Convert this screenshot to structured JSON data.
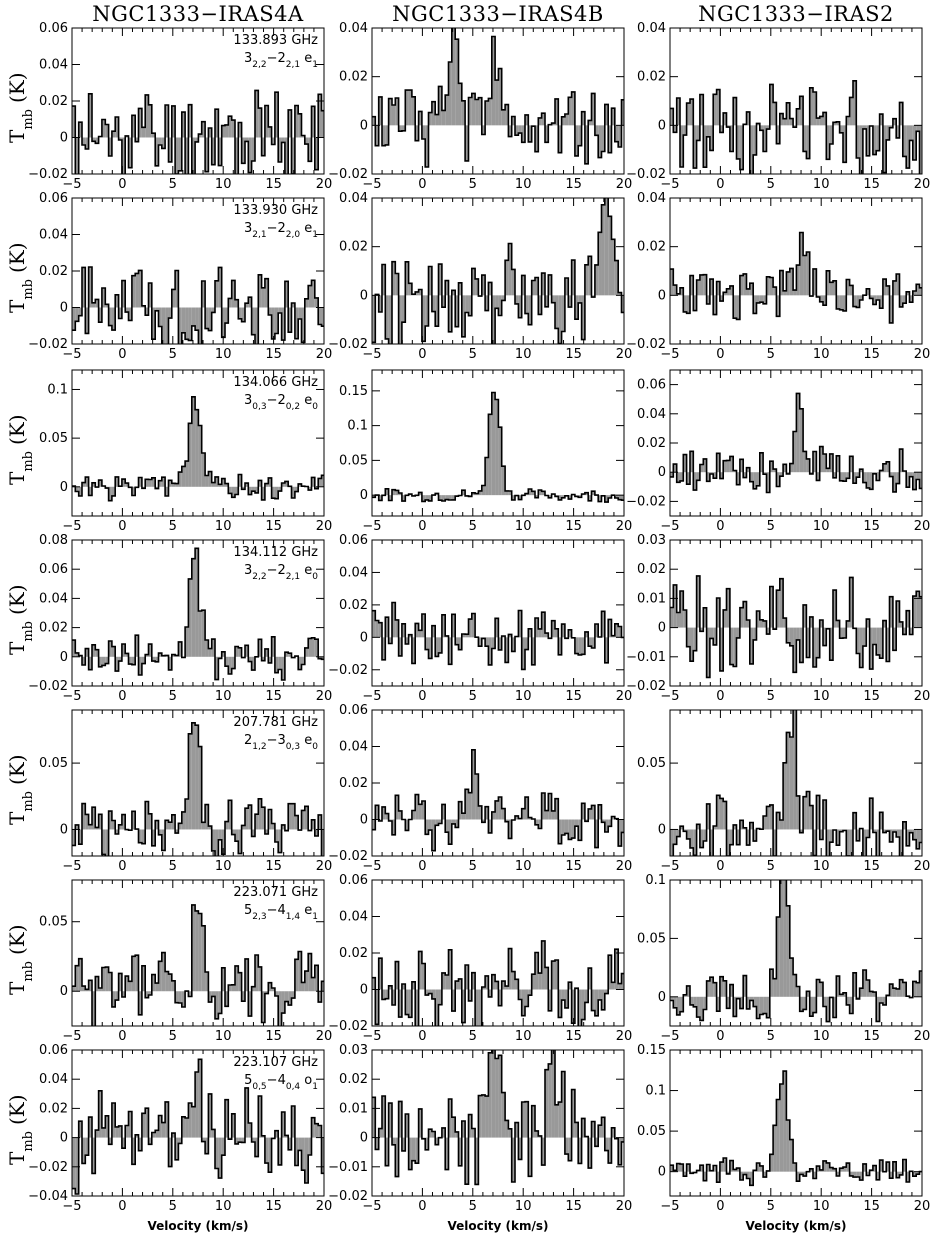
{
  "columns": [
    "NGC1333−IRAS4A",
    "NGC1333−IRAS4B",
    "NGC1333−IRAS2"
  ],
  "ylabel_main": "T",
  "ylabel_sub": "mb",
  "ylabel_unit": "(K)",
  "xlabel": "Velocity (km/s)",
  "colors": {
    "fill": "#999999",
    "line": "#000000"
  },
  "transitions": [
    {
      "freq": "133.893 GHz",
      "q": "3",
      "qa": "2,2",
      "q2": "2",
      "qb": "2,1",
      "sym": "e",
      "symsub": "1"
    },
    {
      "freq": "133.930 GHz",
      "q": "3",
      "qa": "2,1",
      "q2": "2",
      "qb": "2,0",
      "sym": "e",
      "symsub": "1"
    },
    {
      "freq": "134.066 GHz",
      "q": "3",
      "qa": "0,3",
      "q2": "2",
      "qb": "0,2",
      "sym": "e",
      "symsub": "0"
    },
    {
      "freq": "134.112 GHz",
      "q": "3",
      "qa": "2,2",
      "q2": "2",
      "qb": "2,1",
      "sym": "e",
      "symsub": "0"
    },
    {
      "freq": "207.781 GHz",
      "q": "2",
      "qa": "1,2",
      "q2": "3",
      "qb": "0,3",
      "sym": "e",
      "symsub": "0"
    },
    {
      "freq": "223.071 GHz",
      "q": "5",
      "qa": "2,3",
      "q2": "4",
      "qb": "1,4",
      "sym": "e",
      "symsub": "1"
    },
    {
      "freq": "223.107 GHz",
      "q": "5",
      "qa": "0,5",
      "q2": "4",
      "qb": "0,4",
      "sym": "o",
      "symsub": "1"
    }
  ],
  "chart_data": {
    "type": "line",
    "style": "histogram",
    "xlim": [
      -5,
      20
    ],
    "xticks": [
      "−5",
      "0",
      "5",
      "10",
      "15",
      "20"
    ],
    "xlabel": "Velocity (km/s)",
    "ylabel": "Tmb (K)",
    "panels": [
      [
        {
          "ylim": [
            -0.02,
            0.06
          ],
          "yticks": [
            "−0.02",
            "0",
            "0.02",
            "0.04",
            "0.06"
          ],
          "peak": null,
          "amp": 0.025,
          "seed": 11
        },
        {
          "ylim": [
            -0.02,
            0.04
          ],
          "yticks": [
            "−0.02",
            "0",
            "0.02",
            "0.04"
          ],
          "peak": [
            3,
            0.05
          ],
          "peak2": [
            7,
            0.025
          ],
          "amp": 0.015,
          "seed": 12
        },
        {
          "ylim": [
            -0.02,
            0.04
          ],
          "yticks": [
            "−0.02",
            "0",
            "0.02",
            "0.04"
          ],
          "peak": null,
          "amp": 0.018,
          "seed": 13
        }
      ],
      [
        {
          "ylim": [
            -0.02,
            0.06
          ],
          "yticks": [
            "−0.02",
            "0",
            "0.02",
            "0.04",
            "0.06"
          ],
          "peak": null,
          "amp": 0.02,
          "seed": 21
        },
        {
          "ylim": [
            -0.02,
            0.04
          ],
          "yticks": [
            "−0.02",
            "0",
            "0.02",
            "0.04"
          ],
          "peak": [
            18,
            0.035
          ],
          "amp": 0.018,
          "seed": 22
        },
        {
          "ylim": [
            -0.02,
            0.04
          ],
          "yticks": [
            "−0.02",
            "0",
            "0.02",
            "0.04"
          ],
          "peak": [
            8,
            0.022
          ],
          "amp": 0.01,
          "seed": 23
        }
      ],
      [
        {
          "ylim": [
            -0.03,
            0.12
          ],
          "yticks": [
            "0",
            "0.05",
            "0.1"
          ],
          "peak": [
            7,
            0.1
          ],
          "amp": 0.012,
          "seed": 31
        },
        {
          "ylim": [
            -0.03,
            0.18
          ],
          "yticks": [
            "0",
            "0.05",
            "0.1",
            "0.15"
          ],
          "peak": [
            7,
            0.155
          ],
          "amp": 0.008,
          "seed": 32
        },
        {
          "ylim": [
            -0.03,
            0.07
          ],
          "yticks": [
            "−0.02",
            "0",
            "0.02",
            "0.04",
            "0.06"
          ],
          "peak": [
            7.5,
            0.04
          ],
          "amp": 0.014,
          "seed": 33
        }
      ],
      [
        {
          "ylim": [
            -0.02,
            0.08
          ],
          "yticks": [
            "−0.02",
            "0",
            "0.02",
            "0.04",
            "0.06",
            "0.08"
          ],
          "peak": [
            7,
            0.065
          ],
          "amp": 0.015,
          "seed": 41
        },
        {
          "ylim": [
            -0.03,
            0.06
          ],
          "yticks": [
            "−0.02",
            "0",
            "0.02",
            "0.04",
            "0.06"
          ],
          "peak": null,
          "amp": 0.018,
          "seed": 42
        },
        {
          "ylim": [
            -0.02,
            0.03
          ],
          "yticks": [
            "−0.02",
            "−0.01",
            "0",
            "0.01",
            "0.02",
            "0.03"
          ],
          "peak": null,
          "amp": 0.015,
          "seed": 43
        }
      ],
      [
        {
          "ylim": [
            -0.02,
            0.09
          ],
          "yticks": [
            "0",
            "0.05"
          ],
          "peak": [
            7,
            0.075
          ],
          "amp": 0.022,
          "seed": 51
        },
        {
          "ylim": [
            -0.02,
            0.06
          ],
          "yticks": [
            "−0.02",
            "0",
            "0.02",
            "0.04",
            "0.06"
          ],
          "peak": [
            5,
            0.03
          ],
          "amp": 0.014,
          "seed": 52
        },
        {
          "ylim": [
            -0.02,
            0.09
          ],
          "yticks": [
            "0",
            "0.05"
          ],
          "peak": [
            7,
            0.08
          ],
          "amp": 0.025,
          "seed": 53
        }
      ],
      [
        {
          "ylim": [
            -0.025,
            0.08
          ],
          "yticks": [
            "0",
            "0.05"
          ],
          "peak": [
            7.5,
            0.07
          ],
          "amp": 0.025,
          "seed": 61
        },
        {
          "ylim": [
            -0.02,
            0.06
          ],
          "yticks": [
            "−0.02",
            "0",
            "0.02",
            "0.04",
            "0.06"
          ],
          "peak": null,
          "amp": 0.022,
          "seed": 62
        },
        {
          "ylim": [
            -0.025,
            0.1
          ],
          "yticks": [
            "0",
            "0.05",
            "0.1"
          ],
          "peak": [
            6,
            0.095
          ],
          "amp": 0.02,
          "seed": 63
        }
      ],
      [
        {
          "ylim": [
            -0.04,
            0.06
          ],
          "yticks": [
            "−0.04",
            "−0.02",
            "0",
            "0.02",
            "0.04",
            "0.06"
          ],
          "peak": [
            7,
            0.05
          ],
          "amp": 0.03,
          "seed": 71
        },
        {
          "ylim": [
            -0.02,
            0.03
          ],
          "yticks": [
            "−0.02",
            "−0.01",
            "0",
            "0.01",
            "0.02",
            "0.03"
          ],
          "peak": [
            7,
            0.025
          ],
          "peak2": [
            13,
            0.022
          ],
          "amp": 0.014,
          "seed": 72
        },
        {
          "ylim": [
            -0.03,
            0.15
          ],
          "yticks": [
            "0",
            "0.05",
            "0.1",
            "0.15"
          ],
          "peak": [
            6,
            0.12
          ],
          "amp": 0.015,
          "seed": 73
        }
      ]
    ]
  }
}
